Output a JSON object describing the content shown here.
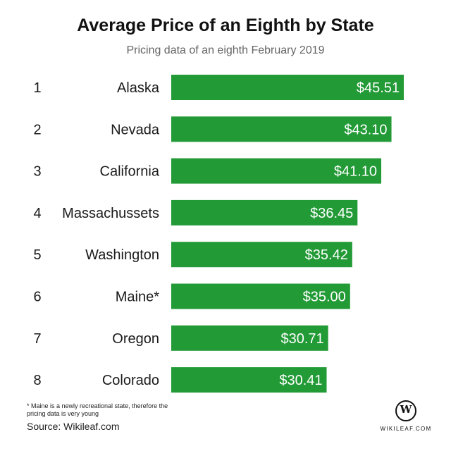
{
  "chart_data": {
    "type": "bar",
    "orientation": "horizontal",
    "title": "Average Price of an Eighth by State",
    "subtitle": "Pricing data of an eighth February 2019",
    "ranks": [
      "1",
      "2",
      "3",
      "4",
      "5",
      "6",
      "7",
      "8"
    ],
    "categories": [
      "Alaska",
      "Nevada",
      "California",
      "Massachussets",
      "Washington",
      "Maine*",
      "Oregon",
      "Colorado"
    ],
    "values": [
      45.51,
      43.1,
      41.1,
      36.45,
      35.42,
      35.0,
      30.71,
      30.41
    ],
    "value_labels": [
      "$45.51",
      "$43.10",
      "$41.10",
      "$36.45",
      "$35.42",
      "$35.00",
      "$30.71",
      "$30.41"
    ],
    "xlim": [
      0,
      45.51
    ],
    "bar_color": "#229a36",
    "label_color": "#ffffff"
  },
  "footnote": "* Maine is a newly recreational state, therefore the pricing data is very young",
  "source": "Source: Wikileaf.com",
  "logo": {
    "icon": "wikileaf-w-icon",
    "glyph": "W",
    "text": "WIKILEAF.COM"
  }
}
